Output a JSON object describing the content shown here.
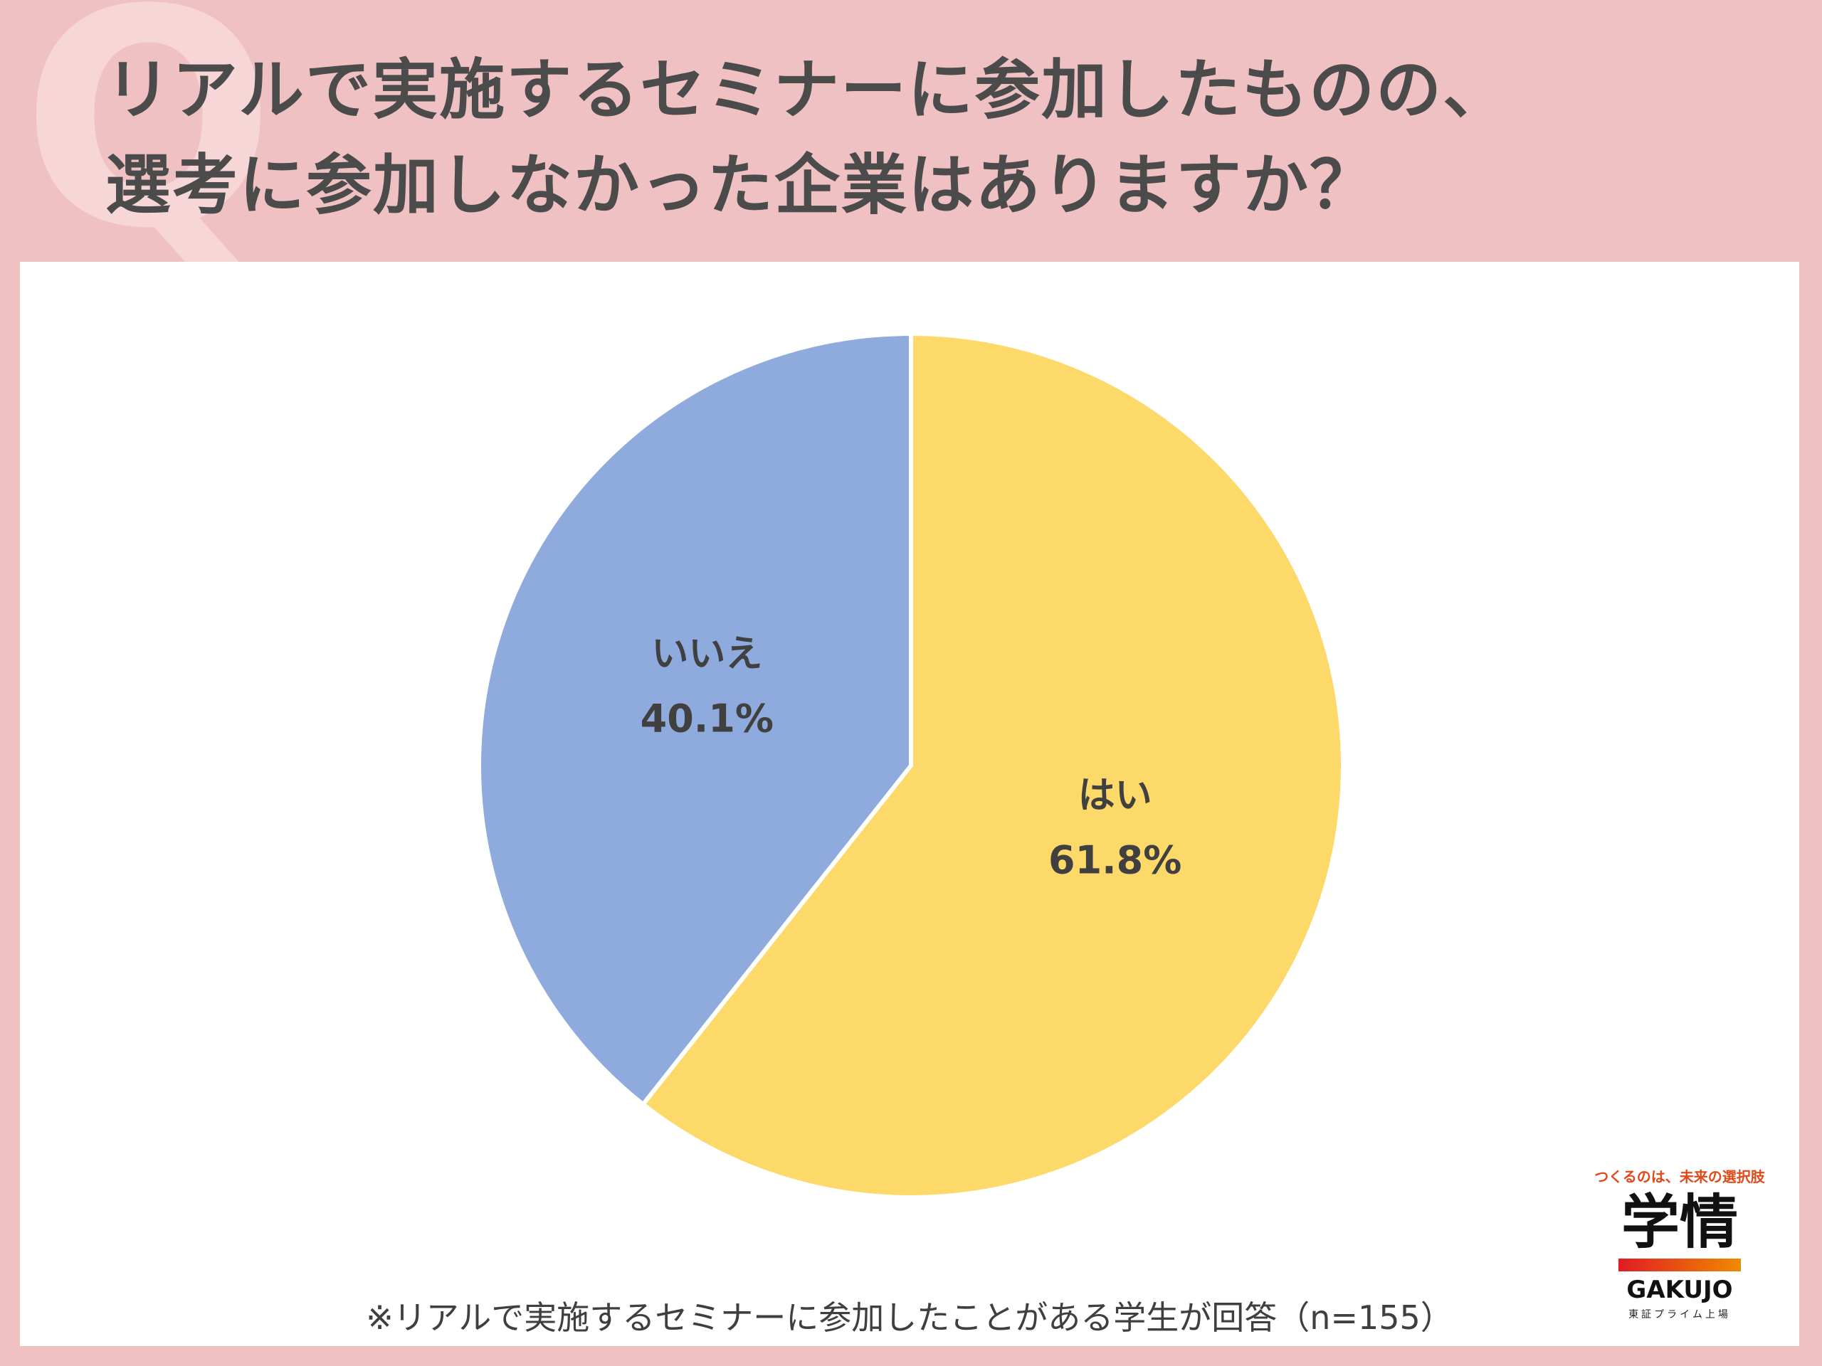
{
  "header": {
    "q_mark": "Q",
    "title_line1": "リアルで実施するセミナーに参加したものの、",
    "title_line2": "選考に参加しなかった企業はありますか？"
  },
  "chart_data": {
    "type": "pie",
    "slices": [
      {
        "label": "はい",
        "value": 61.8,
        "value_label": "61.8%",
        "color": "#fdd96a"
      },
      {
        "label": "いいえ",
        "value": 40.1,
        "value_label": "40.1%",
        "color": "#8faadc"
      }
    ],
    "start_angle_deg": 0,
    "direction": "clockwise"
  },
  "footnote": "※リアルで実施するセミナーに参加したことがある学生が回答（n=155）",
  "logo": {
    "tagline": "つくるのは、未来の選択肢",
    "kanji": "学情",
    "name": "GAKUJO",
    "listing": "東証プライム上場",
    "bar_colors": [
      "#e01b24",
      "#f08a00"
    ]
  }
}
